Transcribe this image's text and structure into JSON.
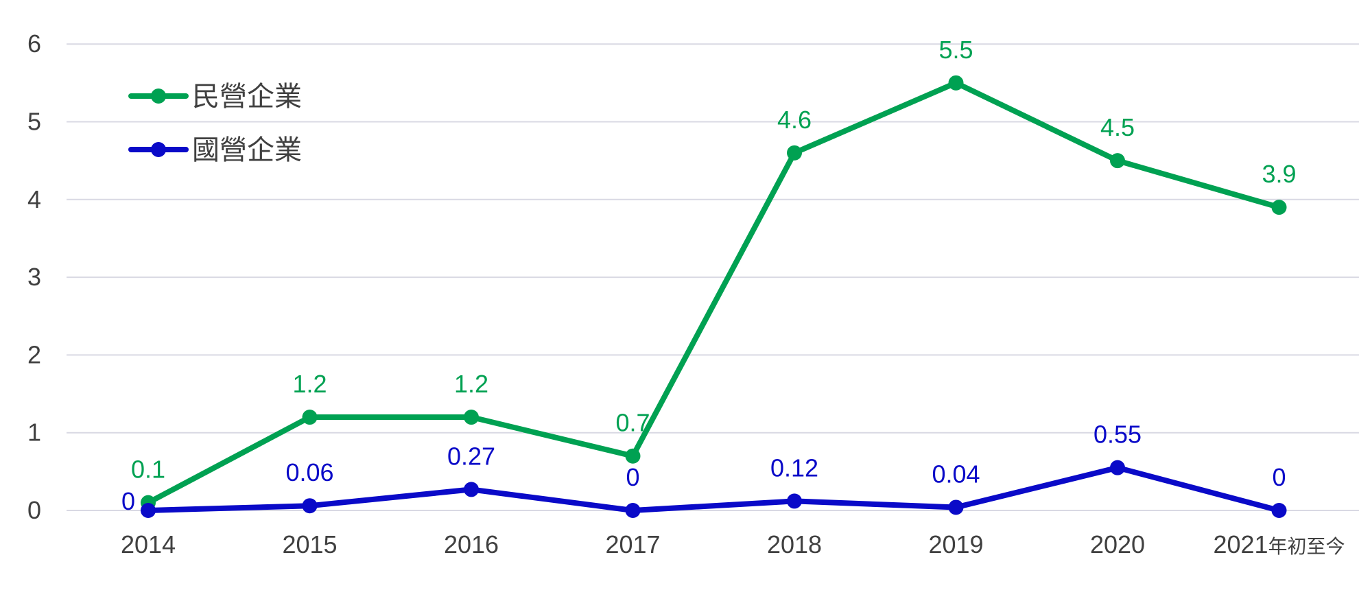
{
  "chart_data": {
    "type": "line",
    "categories": [
      "2014",
      "2015",
      "2016",
      "2017",
      "2018",
      "2019",
      "2020",
      "2021年初至今"
    ],
    "ylim": [
      0,
      6
    ],
    "yticks": [
      "0",
      "1",
      "2",
      "3",
      "4",
      "5",
      "6"
    ],
    "grid": true,
    "legend_position": "top-left",
    "series": [
      {
        "name": "民營企業",
        "color": "#00a152",
        "values": [
          0.1,
          1.2,
          1.2,
          0.7,
          4.6,
          5.5,
          4.5,
          3.9
        ],
        "labels": [
          "0.1",
          "1.2",
          "1.2",
          "0.7",
          "4.6",
          "5.5",
          "4.5",
          "3.9"
        ]
      },
      {
        "name": "國營企業",
        "color": "#0a0ac8",
        "values": [
          0,
          0.06,
          0.27,
          0,
          0.12,
          0.04,
          0.55,
          0
        ],
        "labels": [
          "0",
          "0.06",
          "0.27",
          "0",
          "0.12",
          "0.04",
          "0.55",
          "0"
        ]
      }
    ]
  }
}
